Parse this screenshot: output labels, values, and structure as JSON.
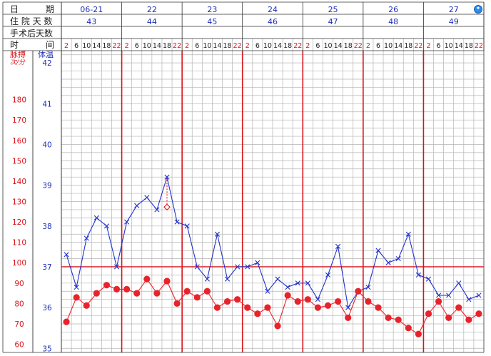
{
  "header": {
    "date_label": [
      "日",
      "期"
    ],
    "hospital_day_label": "住 院 天 数",
    "post_op_label": "手术后天数",
    "time_label": [
      "时",
      "间"
    ],
    "pulse_label": "脉搏",
    "pulse_unit": "次/分",
    "temp_label": "体温"
  },
  "days": [
    {
      "date": "06-21",
      "hospital_day": "43"
    },
    {
      "date": "22",
      "hospital_day": "44"
    },
    {
      "date": "23",
      "hospital_day": "45"
    },
    {
      "date": "24",
      "hospital_day": "46"
    },
    {
      "date": "25",
      "hospital_day": "47"
    },
    {
      "date": "26",
      "hospital_day": "48"
    },
    {
      "date": "27",
      "hospital_day": "49"
    }
  ],
  "hours": [
    "2",
    "6",
    "10",
    "14",
    "18",
    "22"
  ],
  "colors": {
    "blue_text": "#1f2fb8",
    "red": "#d9131b",
    "grid": "#b4b4b4",
    "temp_line": "#2233cc",
    "pulse_line": "#e8232b",
    "black": "#222222"
  },
  "chart_data": {
    "type": "line",
    "x_unit": "measurement slot (6 per day: 2,6,10,14,18,22)",
    "temperature_axis": {
      "ticks": [
        35,
        36,
        37,
        38,
        39,
        40,
        41,
        42
      ],
      "range": [
        34.9,
        42.3
      ],
      "reference_line": 37
    },
    "pulse_axis": {
      "ticks": [
        60,
        70,
        80,
        90,
        100,
        110,
        120,
        130,
        140,
        150,
        160,
        170,
        180
      ],
      "range": [
        56,
        204
      ]
    },
    "series": [
      {
        "marker": "x",
        "values": [
          37.3,
          36.5,
          37.7,
          38.2,
          38.0,
          37.0,
          38.1,
          38.5,
          38.7,
          38.4,
          39.2,
          38.1,
          38.0,
          37.0,
          36.7,
          37.8,
          36.7,
          37.0,
          37.0,
          37.1,
          36.4,
          36.7,
          36.5,
          36.6,
          36.6,
          36.2,
          36.8,
          37.5,
          36.0,
          36.4,
          36.5,
          37.4,
          37.1,
          37.2,
          37.8,
          36.8,
          36.7,
          36.3,
          36.3,
          36.6,
          36.2,
          36.3
        ]
      },
      {
        "marker": "dot",
        "values": [
          71,
          83,
          79,
          85,
          89,
          87,
          87,
          85,
          92,
          85,
          91,
          80,
          86,
          83,
          86,
          78,
          81,
          82,
          78,
          75,
          78,
          69,
          84,
          81,
          82,
          78,
          79,
          81,
          73,
          86,
          81,
          78,
          73,
          72,
          68,
          65,
          75,
          81,
          73,
          78,
          72,
          75
        ]
      }
    ],
    "annotations": [
      {
        "slot": 10,
        "temperature": 38.5,
        "marker": "open-diamond"
      }
    ]
  }
}
